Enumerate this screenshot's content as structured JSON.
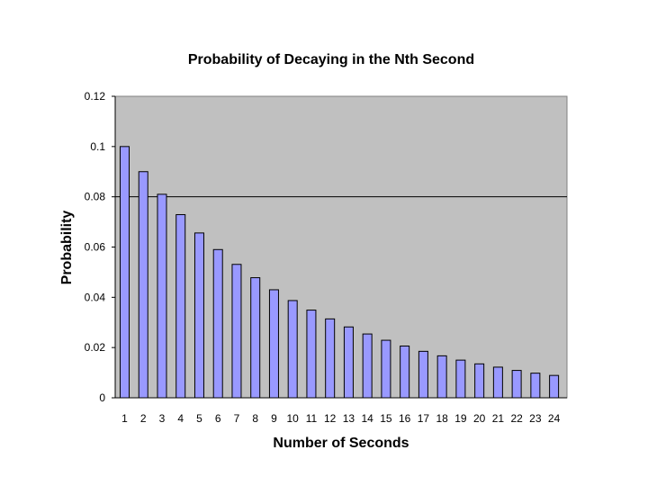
{
  "chart_data": {
    "type": "bar",
    "title": "Probability of Decaying in the Nth Second",
    "xlabel": "Number of Seconds",
    "ylabel": "Probability",
    "categories": [
      "1",
      "2",
      "3",
      "4",
      "5",
      "6",
      "7",
      "8",
      "9",
      "10",
      "11",
      "12",
      "13",
      "14",
      "15",
      "16",
      "17",
      "18",
      "19",
      "20",
      "21",
      "22",
      "23",
      "24"
    ],
    "values": [
      0.1,
      0.09,
      0.081,
      0.0729,
      0.0656,
      0.059,
      0.0531,
      0.0478,
      0.043,
      0.0387,
      0.0349,
      0.0314,
      0.0282,
      0.0254,
      0.0229,
      0.0206,
      0.0185,
      0.0167,
      0.015,
      0.0135,
      0.0122,
      0.0109,
      0.0098,
      0.0089
    ],
    "ylim": [
      0,
      0.12
    ],
    "yticks": [
      0,
      0.02,
      0.04,
      0.06,
      0.08,
      0.1,
      0.12
    ],
    "ytick_labels": [
      "0",
      "0.02",
      "0.04",
      "0.06",
      "0.08",
      "0.1",
      "0.12"
    ],
    "grid": "horizontal line at 0.08",
    "legend": "none",
    "colors": {
      "bar_fill": "#9999ff",
      "bar_stroke": "#000000",
      "plot_background": "#c0c0c0",
      "gridline": "#000000"
    }
  }
}
